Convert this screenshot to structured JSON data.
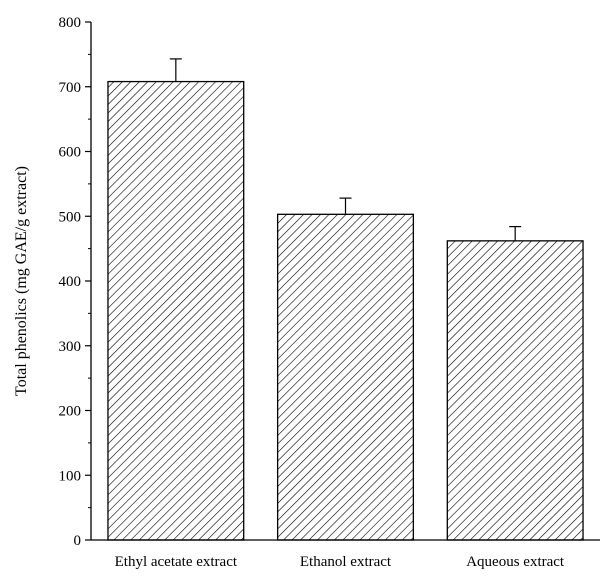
{
  "chart_data": {
    "type": "bar",
    "title": "",
    "xlabel": "",
    "ylabel": "Total phenolics (mg GAE/g extract)",
    "ylim": [
      0,
      800
    ],
    "yticks": [
      0,
      100,
      200,
      300,
      400,
      500,
      600,
      700,
      800
    ],
    "categories": [
      "Ethyl acetate extract",
      "Ethanol extract",
      "Aqueous extract"
    ],
    "values": [
      708,
      503,
      462
    ],
    "errors": [
      35,
      25,
      22
    ],
    "grid": false,
    "legend": "none",
    "bar_pattern": "diagonal-hatch",
    "colors": {
      "bar_fill": "#ffffff",
      "bar_stroke": "#000000",
      "axis": "#000000"
    }
  }
}
